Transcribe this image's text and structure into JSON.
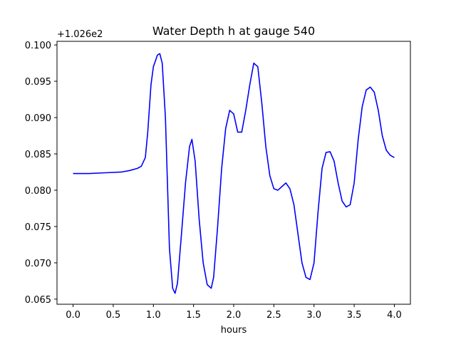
{
  "chart_data": {
    "type": "line",
    "title": "Water Depth h at gauge 540",
    "xlabel": "hours",
    "ylabel": "",
    "y_offset_label": "+1.026e2",
    "y_offset": 102.6,
    "xlim": [
      -0.2,
      4.2
    ],
    "ylim": [
      0.0643,
      0.1005
    ],
    "xticks": [
      0.0,
      0.5,
      1.0,
      1.5,
      2.0,
      2.5,
      3.0,
      3.5,
      4.0
    ],
    "xtick_labels": [
      "0.0",
      "0.5",
      "1.0",
      "1.5",
      "2.0",
      "2.5",
      "3.0",
      "3.5",
      "4.0"
    ],
    "yticks": [
      0.065,
      0.07,
      0.075,
      0.08,
      0.085,
      0.09,
      0.095,
      0.1
    ],
    "ytick_labels": [
      "0.065",
      "0.070",
      "0.075",
      "0.080",
      "0.085",
      "0.090",
      "0.095",
      "0.100"
    ],
    "grid": false,
    "line_color": "#0000ff",
    "series": [
      {
        "x": [
          0.0,
          0.2,
          0.4,
          0.6,
          0.7,
          0.8,
          0.85,
          0.9,
          0.93,
          0.97,
          1.0,
          1.05,
          1.08,
          1.11,
          1.15,
          1.2,
          1.24,
          1.27,
          1.3,
          1.35,
          1.4,
          1.45,
          1.48,
          1.52,
          1.57,
          1.62,
          1.67,
          1.72,
          1.75,
          1.8,
          1.85,
          1.9,
          1.95,
          2.0,
          2.05,
          2.1,
          2.15,
          2.2,
          2.25,
          2.3,
          2.35,
          2.4,
          2.45,
          2.5,
          2.55,
          2.6,
          2.65,
          2.7,
          2.75,
          2.8,
          2.85,
          2.9,
          2.95,
          3.0,
          3.05,
          3.1,
          3.15,
          3.2,
          3.25,
          3.3,
          3.35,
          3.4,
          3.45,
          3.5,
          3.55,
          3.6,
          3.65,
          3.7,
          3.75,
          3.8,
          3.85,
          3.9,
          3.95,
          4.0
        ],
        "y": [
          0.0823,
          0.0823,
          0.0824,
          0.0825,
          0.0827,
          0.083,
          0.0833,
          0.0845,
          0.088,
          0.0945,
          0.097,
          0.0986,
          0.0988,
          0.0975,
          0.09,
          0.072,
          0.0665,
          0.0658,
          0.0672,
          0.074,
          0.081,
          0.086,
          0.087,
          0.084,
          0.076,
          0.07,
          0.067,
          0.0665,
          0.068,
          0.075,
          0.083,
          0.0885,
          0.091,
          0.0905,
          0.088,
          0.088,
          0.091,
          0.0945,
          0.0975,
          0.097,
          0.092,
          0.086,
          0.082,
          0.0802,
          0.08,
          0.0805,
          0.081,
          0.0802,
          0.078,
          0.074,
          0.07,
          0.068,
          0.0677,
          0.07,
          0.077,
          0.083,
          0.0852,
          0.0853,
          0.084,
          0.081,
          0.0785,
          0.0777,
          0.078,
          0.081,
          0.087,
          0.0915,
          0.0938,
          0.0942,
          0.0935,
          0.091,
          0.0875,
          0.0855,
          0.0848,
          0.0845
        ]
      }
    ]
  }
}
